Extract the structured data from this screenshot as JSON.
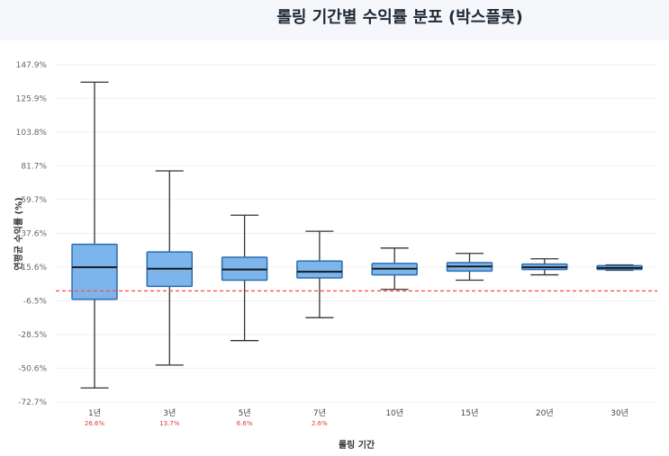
{
  "title": "롤링 기간별 수익률 분포 (박스플롯)",
  "chart_data": {
    "type": "box",
    "xlabel": "롤링 기간",
    "ylabel": "연평균 수익률 (%)",
    "ylim": [
      -72.7,
      147.9
    ],
    "yticks": [
      "147.9%",
      "125.9%",
      "103.8%",
      "81.7%",
      "59.7%",
      "37.6%",
      "15.6%",
      "-6.5%",
      "-28.5%",
      "-50.6%",
      "-72.7%"
    ],
    "ytick_values": [
      147.9,
      125.9,
      103.8,
      81.7,
      59.7,
      37.6,
      15.6,
      -6.5,
      -28.5,
      -50.6,
      -72.7
    ],
    "reference_line": 0,
    "categories": [
      "1년",
      "3년",
      "5년",
      "7년",
      "10년",
      "15년",
      "20년",
      "30년"
    ],
    "negative_probability": [
      "26.6%",
      "13.7%",
      "6.6%",
      "2.6%",
      "",
      "",
      "",
      ""
    ],
    "boxes": [
      {
        "min": -63.5,
        "q1": -5.5,
        "median": 15.5,
        "q3": 30.5,
        "max": 136.5
      },
      {
        "min": -48.5,
        "q1": 3.0,
        "median": 14.5,
        "q3": 25.5,
        "max": 78.5
      },
      {
        "min": -32.5,
        "q1": 7.0,
        "median": 14.0,
        "q3": 22.0,
        "max": 49.5
      },
      {
        "min": -17.5,
        "q1": 8.5,
        "median": 12.5,
        "q3": 19.5,
        "max": 39.0
      },
      {
        "min": 1.0,
        "q1": 10.5,
        "median": 14.5,
        "q3": 18.0,
        "max": 28.0
      },
      {
        "min": 7.0,
        "q1": 13.0,
        "median": 16.0,
        "q3": 18.5,
        "max": 24.5
      },
      {
        "min": 10.5,
        "q1": 14.0,
        "median": 15.5,
        "q3": 17.5,
        "max": 21.0
      },
      {
        "min": 13.5,
        "q1": 14.0,
        "median": 15.0,
        "q3": 16.5,
        "max": 17.0
      }
    ],
    "box_fill": "#7cb5ec",
    "box_stroke": "#2b6cb0",
    "reference_color": "#ff4d4d",
    "grid": true
  }
}
